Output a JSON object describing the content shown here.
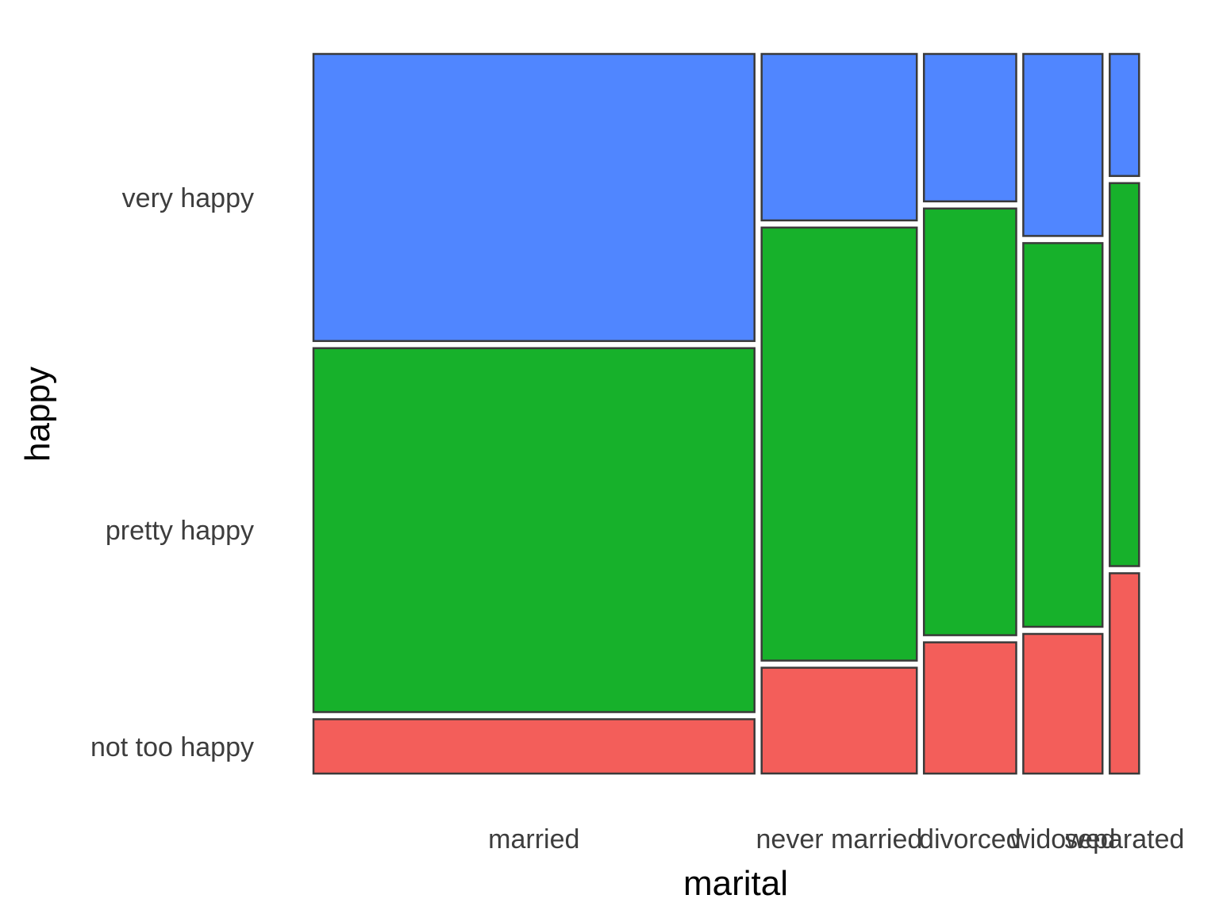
{
  "chart_data": {
    "type": "mosaic",
    "xlabel": "marital",
    "ylabel": "happy",
    "categories": [
      "married",
      "never married",
      "divorced",
      "widowed",
      "separated"
    ],
    "category_share": [
      0.54,
      0.19,
      0.113,
      0.097,
      0.036
    ],
    "levels": [
      "not too happy",
      "pretty happy",
      "very happy"
    ],
    "series": [
      {
        "name": "not too happy",
        "color": "#F35E5A",
        "values": [
          0.077,
          0.15,
          0.186,
          0.198,
          0.284
        ]
      },
      {
        "name": "pretty happy",
        "color": "#17B12B",
        "values": [
          0.516,
          0.614,
          0.605,
          0.544,
          0.543
        ]
      },
      {
        "name": "very happy",
        "color": "#5086FF",
        "values": [
          0.407,
          0.236,
          0.209,
          0.258,
          0.173
        ]
      }
    ],
    "y_tick_labels": [
      "very happy",
      "pretty happy",
      "not too happy"
    ],
    "legend": "none",
    "grid": false
  }
}
